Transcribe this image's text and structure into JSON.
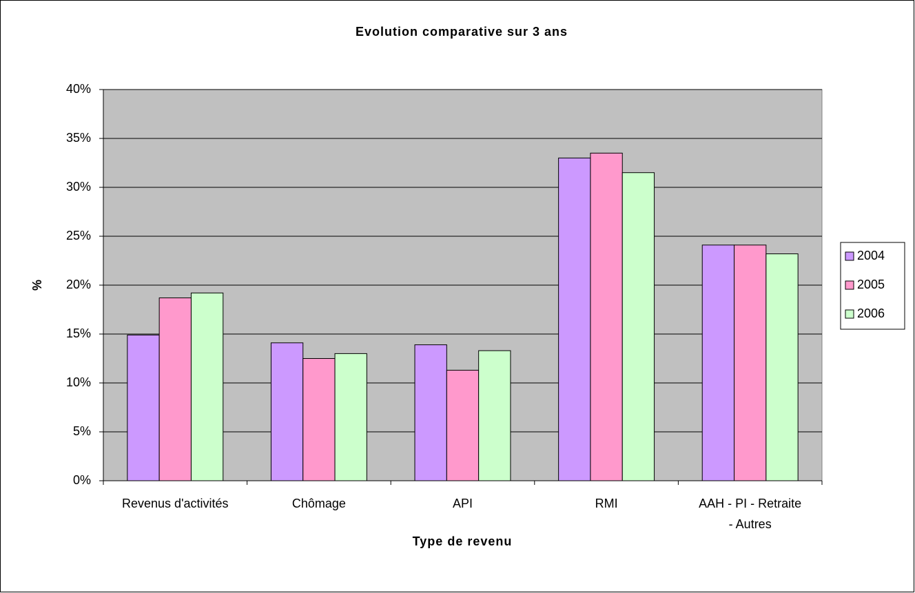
{
  "chart_data": {
    "type": "bar",
    "title": "Evolution comparative sur 3 ans",
    "x_label": "Type de revenu",
    "y_label": "%",
    "categories": [
      "Revenus d'activités",
      "Chômage",
      "API",
      "RMI",
      "AAH - PI - Retraite - Autres"
    ],
    "series": [
      {
        "name": "2004",
        "color": "#cc99ff",
        "values": [
          14.9,
          14.1,
          13.9,
          33.0,
          24.1
        ]
      },
      {
        "name": "2005",
        "color": "#ff99cc",
        "values": [
          18.7,
          12.5,
          11.3,
          33.5,
          24.1
        ]
      },
      {
        "name": "2006",
        "color": "#ccffcc",
        "values": [
          19.2,
          13.0,
          13.3,
          31.5,
          23.2
        ]
      }
    ],
    "ylim": [
      0,
      40
    ],
    "yticks": [
      {
        "value": 0,
        "label": "0%"
      },
      {
        "value": 5,
        "label": "5%"
      },
      {
        "value": 10,
        "label": "10%"
      },
      {
        "value": 15,
        "label": "15%"
      },
      {
        "value": 20,
        "label": "20%"
      },
      {
        "value": 25,
        "label": "25%"
      },
      {
        "value": 30,
        "label": "30%"
      },
      {
        "value": 35,
        "label": "35%"
      },
      {
        "value": 40,
        "label": "40%"
      }
    ],
    "grid": true,
    "legend": "right"
  }
}
